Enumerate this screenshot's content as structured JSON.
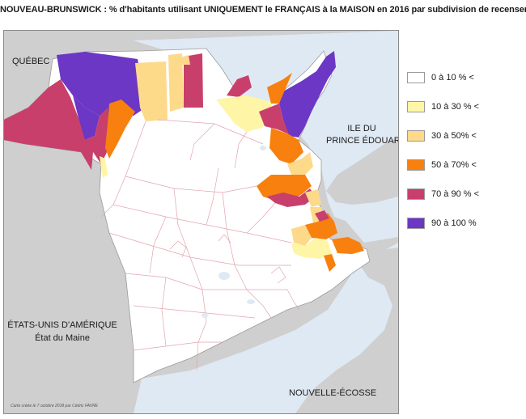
{
  "title": "NOUVEAU-BRUNSWICK : % d'habitants utilisant UNIQUEMENT le FRANÇAIS à la MAISON en 2016 par subdivision de recensement",
  "map_labels": {
    "quebec": "QUÉBEC",
    "pei_line1": "ILE DU",
    "pei_line2": "PRINCE ÉDOUARD",
    "usa_line1": "ÉTATS-UNIS D'AMÉRIQUE",
    "usa_line2": "État du Maine",
    "nova_scotia": "NOUVELLE-ÉCOSSE"
  },
  "credit": "Carte créée le 7 octobre 2018 par Cédric FAVRE",
  "legend": [
    {
      "label": "0 à 10 % <",
      "color": "#ffffff"
    },
    {
      "label": "10 à 30 % <",
      "color": "#fff5a6"
    },
    {
      "label": "30 à 50% <",
      "color": "#fdd98a"
    },
    {
      "label": "50 à 70% <",
      "color": "#f7800f"
    },
    {
      "label": "70 à 90 % <",
      "color": "#c93f6c"
    },
    {
      "label": "90 à 100 %",
      "color": "#6b37c4"
    }
  ],
  "colors": {
    "land_other": "#cfcfcf",
    "water": "#dfe9f4",
    "boundary": "#e3a4ae"
  }
}
